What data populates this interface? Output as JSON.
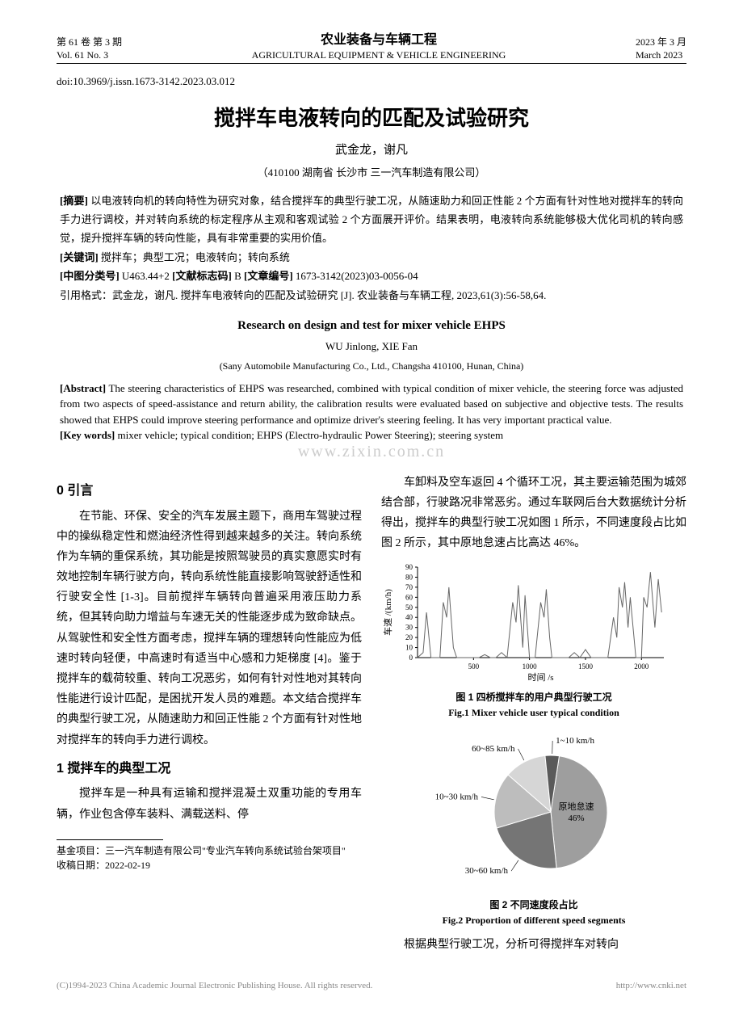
{
  "header": {
    "left_line1": "第 61 卷 第 3 期",
    "left_line2": "Vol. 61  No. 3",
    "center_cn": "农业装备与车辆工程",
    "center_en": "AGRICULTURAL EQUIPMENT & VEHICLE ENGINEERING",
    "right_line1": "2023 年 3 月",
    "right_line2": "March 2023"
  },
  "doi": "doi:10.3969/j.issn.1673-3142.2023.03.012",
  "title_cn": "搅拌车电液转向的匹配及试验研究",
  "authors_cn": "武金龙，谢凡",
  "affil_cn": "（410100 湖南省 长沙市 三一汽车制造有限公司）",
  "abstract_cn_label": "[摘要]",
  "abstract_cn": " 以电液转向机的转向特性为研究对象，结合搅拌车的典型行驶工况，从随速助力和回正性能 2 个方面有针对性地对搅拌车的转向手力进行调校，并对转向系统的标定程序从主观和客观试验 2 个方面展开评价。结果表明，电液转向系统能够极大优化司机的转向感觉，提升搅拌车辆的转向性能，具有非常重要的实用价值。",
  "keywords_cn_label": "[关键词]",
  "keywords_cn": " 搅拌车；典型工况；电液转向；转向系统",
  "class_label1": "[中图分类号]",
  "class_val1": " U463.44+2    ",
  "class_label2": "[文献标志码]",
  "class_val2": " B    ",
  "class_label3": "[文章编号]",
  "class_val3": " 1673-3142(2023)03-0056-04",
  "cite": "引用格式：武金龙，谢凡. 搅拌车电液转向的匹配及试验研究 [J]. 农业装备与车辆工程, 2023,61(3):56-58,64.",
  "title_en": "Research on design and test for mixer vehicle EHPS",
  "authors_en": "WU Jinlong, XIE Fan",
  "affil_en": "(Sany Automobile Manufacturing Co., Ltd., Changsha 410100, Hunan, China)",
  "abstract_en_label": "[Abstract]",
  "abstract_en": " The steering characteristics of EHPS was researched, combined with typical condition of mixer vehicle, the steering force was adjusted from two aspects of speed-assistance and return ability, the calibration results were evaluated based on subjective and objective tests. The results showed that EHPS could improve steering performance and optimize driver's steering feeling. It has very important practical value.",
  "keywords_en_label": "[Key words]",
  "keywords_en": " mixer vehicle; typical condition; EHPS (Electro-hydraulic Power Steering); steering system",
  "watermark": "www.zixin.com.cn",
  "left_col": {
    "h0": "0 引言",
    "p0": "在节能、环保、安全的汽车发展主题下，商用车驾驶过程中的操纵稳定性和燃油经济性得到越来越多的关注。转向系统作为车辆的重保系统，其功能是按照驾驶员的真实意愿实时有效地控制车辆行驶方向，转向系统性能直接影响驾驶舒适性和行驶安全性 [1-3]。目前搅拌车辆转向普遍采用液压助力系统，但其转向助力增益与车速无关的性能逐步成为致命缺点。从驾驶性和安全性方面考虑，搅拌车辆的理想转向性能应为低速时转向轻便，中高速时有适当中心感和力矩梯度 [4]。鉴于搅拌车的载荷较重、转向工况恶劣，如何有针对性地对其转向性能进行设计匹配，是困扰开发人员的难题。本文结合搅拌车的典型行驶工况，从随速助力和回正性能 2 个方面有针对性地对搅拌车的转向手力进行调校。",
    "h1": "1 搅拌车的典型工况",
    "p1": "搅拌车是一种具有运输和搅拌混凝土双重功能的专用车辆，作业包含停车装料、满载送料、停"
  },
  "right_col": {
    "p0": "车卸料及空车返回 4 个循环工况，其主要运输范围为城郊结合部，行驶路况非常恶劣。通过车联网后台大数据统计分析得出，搅拌车的典型行驶工况如图 1 所示，不同速度段占比如图 2 所示，其中原地怠速占比高达 46%。",
    "p1": "根据典型行驶工况，分析可得搅拌车对转向"
  },
  "fig1": {
    "type": "line",
    "caption_cn": "图 1 四桥搅拌车的用户典型行驶工况",
    "caption_en": "Fig.1 Mixer vehicle user typical condition",
    "xlabel": "时间 /s",
    "ylabel": "车速 /(km/h)",
    "xlim": [
      0,
      2200
    ],
    "ylim": [
      0,
      90
    ],
    "xticks": [
      500,
      1000,
      1500,
      2000
    ],
    "yticks": [
      0,
      10,
      20,
      30,
      40,
      50,
      60,
      70,
      80,
      90
    ],
    "line_color": "#666666",
    "line_width": 1,
    "background_color": "#ffffff",
    "axis_color": "#000000",
    "data": [
      [
        0,
        0
      ],
      [
        50,
        5
      ],
      [
        80,
        45
      ],
      [
        120,
        0
      ],
      [
        150,
        0
      ],
      [
        200,
        0
      ],
      [
        230,
        55
      ],
      [
        260,
        40
      ],
      [
        280,
        70
      ],
      [
        320,
        10
      ],
      [
        350,
        0
      ],
      [
        400,
        0
      ],
      [
        500,
        0
      ],
      [
        550,
        0
      ],
      [
        600,
        3
      ],
      [
        650,
        0
      ],
      [
        700,
        0
      ],
      [
        750,
        5
      ],
      [
        800,
        0
      ],
      [
        850,
        55
      ],
      [
        880,
        35
      ],
      [
        900,
        72
      ],
      [
        940,
        10
      ],
      [
        960,
        62
      ],
      [
        1000,
        0
      ],
      [
        1050,
        0
      ],
      [
        1100,
        55
      ],
      [
        1130,
        40
      ],
      [
        1150,
        68
      ],
      [
        1180,
        20
      ],
      [
        1200,
        0
      ],
      [
        1250,
        0
      ],
      [
        1350,
        0
      ],
      [
        1400,
        5
      ],
      [
        1450,
        0
      ],
      [
        1500,
        8
      ],
      [
        1550,
        0
      ],
      [
        1600,
        0
      ],
      [
        1700,
        0
      ],
      [
        1750,
        40
      ],
      [
        1780,
        20
      ],
      [
        1800,
        70
      ],
      [
        1830,
        50
      ],
      [
        1850,
        75
      ],
      [
        1880,
        30
      ],
      [
        1900,
        60
      ],
      [
        1950,
        0
      ],
      [
        2000,
        0
      ],
      [
        2020,
        60
      ],
      [
        2050,
        50
      ],
      [
        2080,
        85
      ],
      [
        2120,
        30
      ],
      [
        2150,
        78
      ],
      [
        2180,
        45
      ]
    ]
  },
  "fig2": {
    "type": "pie",
    "caption_cn": "图 2 不同速度段占比",
    "caption_en": "Fig.2 Proportion of different speed segments",
    "background_color": "#ffffff",
    "slices": [
      {
        "label": "原地怠速",
        "sublabel": "46%",
        "value": 46,
        "color": "#9e9e9e"
      },
      {
        "label": "30~60 km/h",
        "value": 22,
        "color": "#757575"
      },
      {
        "label": "10~30 km/h",
        "value": 16,
        "color": "#bdbdbd"
      },
      {
        "label": "60~85 km/h",
        "value": 12,
        "color": "#d6d6d6"
      },
      {
        "label": "1~10 km/h",
        "value": 4,
        "color": "#5a5a5a"
      }
    ],
    "label_fontsize": 11,
    "label_color": "#000000"
  },
  "footnote": {
    "fund": "基金项目：三一汽车制造有限公司\"专业汽车转向系统试验台架项目\"",
    "recv": "收稿日期：2022-02-19"
  },
  "footer": {
    "left": "(C)1994-2023 China Academic Journal Electronic Publishing House. All rights reserved.",
    "right": "http://www.cnki.net"
  }
}
